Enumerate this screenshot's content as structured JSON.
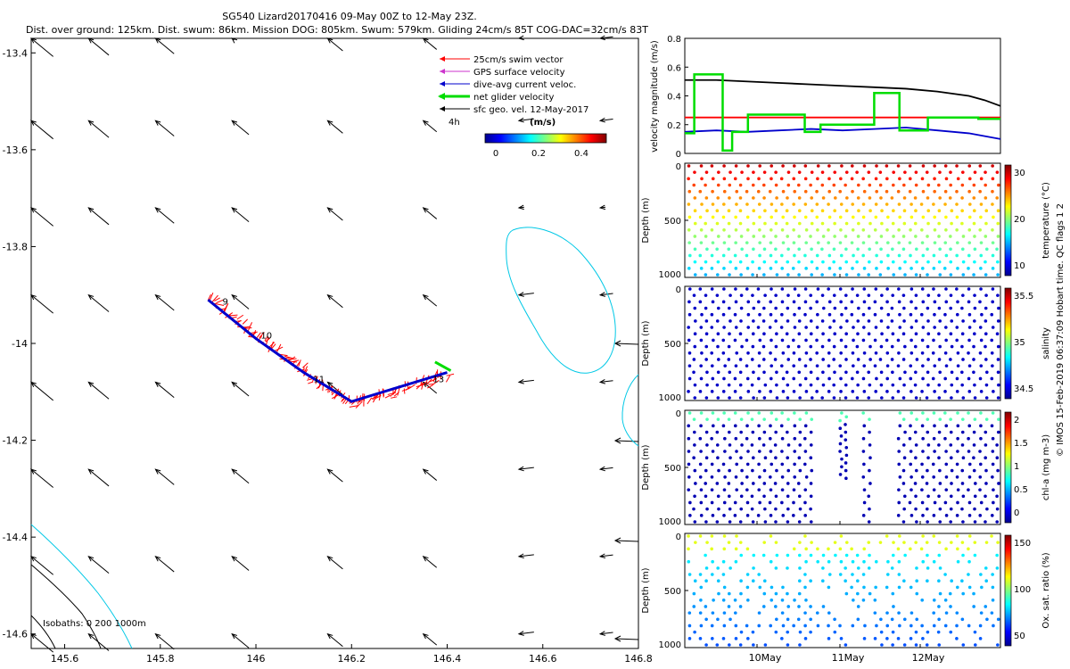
{
  "title_line1": "SG540 Lizard20170416 09-May 00Z to 12-May 23Z.",
  "title_line2": "Dist. over ground: 125km. Dist. swum: 86km. Mission DOG: 805km. Swum: 579km. Gliding 24cm/s 85T COG-DAC=32cm/s 83T",
  "copyright": "© IMOS 15-Feb-2019 06:37:09 Hobart time. QC flags 1  2",
  "colors": {
    "swim": "#ff0000",
    "gps": "#cc33cc",
    "dac": "#0000cc",
    "net": "#00dd00",
    "geo": "#000000",
    "isobath0": "#00c8e6",
    "isobath": "#000000"
  },
  "chart_data": [
    {
      "type": "map",
      "title": "SG540 Lizard20170416 09-May 00Z to 12-May 23Z.",
      "xlim": [
        145.53,
        146.8
      ],
      "ylim": [
        -14.63,
        -13.37
      ],
      "xticks": [
        145.6,
        145.8,
        146,
        146.2,
        146.4,
        146.6,
        146.8
      ],
      "xtick_labels": [
        "145.6",
        "145.8",
        "146",
        "146.2",
        "146.4",
        "146.6",
        "146.8"
      ],
      "yticks": [
        -13.4,
        -13.6,
        -13.8,
        -14,
        -14.2,
        -14.4,
        -14.6
      ],
      "ytick_labels": [
        "-13.4",
        "-13.6",
        "-13.8",
        "-14",
        "-14.2",
        "-14.4",
        "-14.6"
      ],
      "legend": [
        {
          "label": "25cm/s swim vector",
          "color": "#ff0000"
        },
        {
          "label": "GPS surface velocity",
          "color": "#cc33cc"
        },
        {
          "label": "dive-avg current veloc.",
          "color": "#0000cc"
        },
        {
          "label": "net glider velocity",
          "color": "#00dd00"
        },
        {
          "label": "sfc geo. vel. 12-May-2017",
          "color": "#000000"
        }
      ],
      "legend_note": "4h",
      "colorbar_title": "(m/s)",
      "colorbar_ticks": [
        "0",
        "0.2",
        "0.4"
      ],
      "isobaths_label": "Isobaths: 0   200  1000m",
      "track": [
        [
          145.9,
          -13.91
        ],
        [
          146.0,
          -13.99
        ],
        [
          146.1,
          -14.06
        ],
        [
          146.2,
          -14.12
        ],
        [
          146.3,
          -14.09
        ],
        [
          146.4,
          -14.06
        ]
      ],
      "day_labels": [
        {
          "text": "9",
          "lon": 145.93,
          "lat": -13.92
        },
        {
          "text": "10",
          "lon": 146.01,
          "lat": -13.99
        },
        {
          "text": "11",
          "lon": 146.12,
          "lat": -14.08
        },
        {
          "text": "13",
          "lon": 146.37,
          "lat": -14.08
        }
      ],
      "geo_grid_lons": [
        145.53,
        145.65,
        145.79,
        145.95,
        146.15,
        146.35,
        146.55,
        146.72
      ],
      "geo_grid_lats": [
        -13.37,
        -13.54,
        -13.72,
        -13.9,
        -14.08,
        -14.26,
        -14.44,
        -14.6
      ]
    },
    {
      "type": "line",
      "ylabel": "velocity magnitude (m/s)",
      "ylim": [
        0,
        0.8
      ],
      "yticks": [
        "0",
        "0.2",
        "0.4",
        "0.6",
        "0.8"
      ],
      "series": [
        {
          "name": "geo",
          "color": "#000000",
          "x": [
            0,
            0.1,
            0.2,
            0.3,
            0.4,
            0.5,
            0.6,
            0.7,
            0.8,
            0.9,
            0.95,
            1.0
          ],
          "y": [
            0.51,
            0.51,
            0.5,
            0.49,
            0.48,
            0.47,
            0.46,
            0.45,
            0.43,
            0.4,
            0.37,
            0.33
          ]
        },
        {
          "name": "swim",
          "color": "#ff0000",
          "x": [
            0,
            1
          ],
          "y": [
            0.25,
            0.25
          ]
        },
        {
          "name": "dac",
          "color": "#0000cc",
          "x": [
            0,
            0.1,
            0.2,
            0.3,
            0.4,
            0.5,
            0.6,
            0.7,
            0.8,
            0.9,
            1.0
          ],
          "y": [
            0.15,
            0.16,
            0.15,
            0.16,
            0.17,
            0.16,
            0.17,
            0.18,
            0.16,
            0.14,
            0.1
          ]
        },
        {
          "name": "net",
          "color": "#00dd00",
          "x": [
            0,
            0.03,
            0.03,
            0.12,
            0.12,
            0.15,
            0.15,
            0.2,
            0.2,
            0.38,
            0.38,
            0.43,
            0.43,
            0.6,
            0.6,
            0.68,
            0.68,
            0.77,
            0.77,
            0.93,
            0.93,
            1.0
          ],
          "y": [
            0.14,
            0.14,
            0.55,
            0.55,
            0.02,
            0.02,
            0.15,
            0.15,
            0.27,
            0.27,
            0.15,
            0.15,
            0.2,
            0.2,
            0.42,
            0.42,
            0.16,
            0.16,
            0.25,
            0.25,
            0.24,
            0.24
          ]
        }
      ]
    },
    {
      "type": "scatter",
      "ylabel": "Depth (m)",
      "yticks": [
        "0",
        "500",
        "1000"
      ],
      "colorbar_label": "temperature (°C)",
      "colorbar_ticks": [
        "30",
        "20",
        "10"
      ]
    },
    {
      "type": "scatter",
      "ylabel": "Depth (m)",
      "yticks": [
        "0",
        "500",
        "1000"
      ],
      "colorbar_label": "salinity",
      "colorbar_ticks": [
        "35.5",
        "35",
        "34.5"
      ]
    },
    {
      "type": "scatter",
      "ylabel": "Depth (m)",
      "yticks": [
        "0",
        "500",
        "1000"
      ],
      "colorbar_label": "chl-a (mg m-3)",
      "colorbar_ticks": [
        "2",
        "1.5",
        "1",
        "0.5",
        "0"
      ]
    },
    {
      "type": "scatter",
      "ylabel": "Depth (m)",
      "yticks": [
        "0",
        "500",
        "1000"
      ],
      "colorbar_label": "Ox. sat. ratio (%)",
      "colorbar_ticks": [
        "150",
        "100",
        "50"
      ],
      "xtick_labels": [
        "10May",
        "11May",
        "12May"
      ]
    }
  ]
}
